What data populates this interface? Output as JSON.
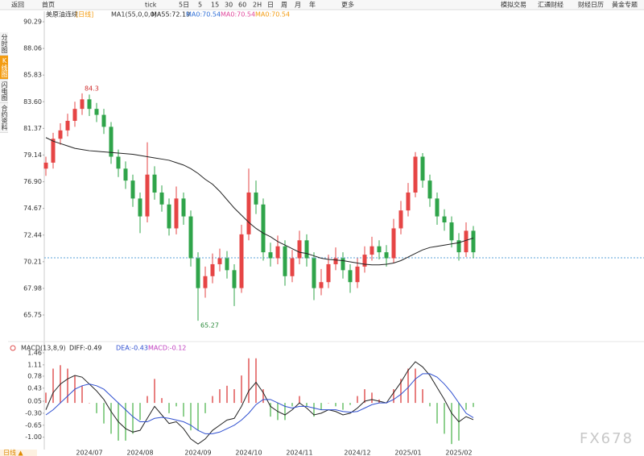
{
  "toolbar": [
    "返回",
    "首页",
    "tick",
    "5日",
    "5",
    "15",
    "30",
    "60",
    "2H",
    "日",
    "周",
    "月",
    "年",
    "更多",
    "模拟交易",
    "汇通财经",
    "财经日历",
    "黄金专题"
  ],
  "sidebar": [
    "分时图",
    "K线图",
    "闪电图",
    "合约资料"
  ],
  "footer_tab": "日线 ▲",
  "watermark": "FX678",
  "chart_data": [
    {
      "type": "candlestick",
      "title": "美原油连续",
      "subtitle": "[日线]",
      "indicator_label": "MA1(55,0,0,0)",
      "legend": [
        {
          "name": "MA55:72.19",
          "color": "#222222"
        },
        {
          "name": "MA0:70.54",
          "color": "#2f6fd6"
        },
        {
          "name": "MA0:70.54",
          "color": "#e0489c"
        },
        {
          "name": "MA0:70.54",
          "color": "#f39c12"
        }
      ],
      "up_color": "#e64545",
      "down_color": "#2fa44a",
      "price_line": 70.54,
      "categories": [
        null,
        null,
        null,
        null,
        null,
        null,
        "2024/07",
        null,
        null,
        null,
        null,
        null,
        null,
        "2024/08",
        null,
        null,
        null,
        null,
        null,
        null,
        null,
        "2024/09",
        null,
        null,
        null,
        null,
        null,
        null,
        "2024/10",
        null,
        null,
        null,
        null,
        null,
        null,
        "2024/11",
        null,
        null,
        null,
        null,
        null,
        null,
        null,
        "2024/12",
        null,
        null,
        null,
        null,
        null,
        null,
        "2025/01",
        null,
        null,
        null,
        null,
        null,
        null,
        "2025/02",
        null,
        null
      ],
      "open": [
        78.0,
        78.5,
        80.5,
        81.2,
        82.0,
        83.0,
        83.8,
        83.0,
        82.5,
        81.5,
        79.0,
        78.0,
        77.0,
        75.5,
        74.0,
        77.5,
        76.0,
        75.0,
        73.0,
        75.5,
        74.0,
        70.5,
        68.0,
        69.0,
        70.0,
        70.5,
        69.5,
        68.0,
        72.5,
        76.0,
        75.0,
        71.0,
        70.5,
        71.5,
        69.0,
        70.5,
        72.0,
        70.5,
        68.0,
        68.5,
        70.0,
        70.5,
        69.5,
        68.5,
        69.8,
        70.8,
        71.5,
        71.0,
        70.5,
        73.0,
        74.5,
        76.0,
        79.0,
        77.0,
        75.5,
        74.0,
        73.5,
        72.0,
        71.0,
        72.8
      ],
      "high": [
        79.0,
        81.0,
        81.8,
        82.6,
        83.6,
        84.3,
        84.2,
        83.5,
        83.0,
        81.9,
        79.6,
        78.6,
        77.5,
        76.0,
        80.2,
        78.2,
        76.6,
        75.5,
        76.5,
        76.0,
        74.5,
        71.0,
        69.8,
        70.9,
        71.3,
        71.1,
        70.0,
        73.3,
        78.0,
        77.0,
        75.5,
        71.8,
        72.4,
        72.0,
        71.2,
        72.8,
        72.5,
        71.0,
        69.6,
        70.8,
        71.4,
        71.0,
        70.0,
        70.5,
        71.5,
        72.3,
        72.0,
        71.6,
        73.8,
        75.3,
        76.8,
        79.39,
        79.3,
        77.5,
        76.0,
        74.6,
        74.0,
        72.6,
        73.5,
        73.2
      ],
      "low": [
        77.4,
        78.0,
        80.0,
        80.7,
        81.5,
        82.5,
        82.4,
        81.9,
        80.9,
        78.4,
        77.3,
        76.3,
        74.8,
        72.6,
        73.5,
        75.4,
        74.4,
        72.4,
        72.5,
        73.3,
        69.8,
        65.27,
        67.2,
        68.4,
        69.4,
        68.8,
        66.5,
        67.6,
        72.0,
        74.2,
        70.3,
        69.8,
        70.0,
        68.2,
        68.5,
        70.0,
        69.8,
        67.0,
        67.4,
        68.0,
        69.5,
        68.8,
        67.6,
        68.0,
        69.3,
        70.3,
        70.4,
        69.8,
        70.1,
        72.5,
        74.0,
        75.6,
        76.4,
        74.8,
        73.3,
        72.8,
        71.4,
        70.3,
        70.6,
        70.5
      ],
      "close": [
        78.5,
        80.5,
        81.2,
        82.0,
        83.0,
        83.8,
        83.0,
        82.5,
        81.5,
        79.0,
        78.0,
        77.0,
        75.5,
        74.0,
        77.5,
        76.0,
        75.0,
        73.0,
        75.5,
        74.0,
        70.5,
        68.0,
        69.0,
        70.0,
        70.5,
        69.5,
        68.0,
        72.5,
        76.0,
        75.0,
        71.0,
        70.5,
        71.5,
        69.0,
        70.5,
        72.0,
        70.5,
        68.0,
        68.5,
        70.0,
        70.5,
        69.5,
        68.5,
        69.8,
        70.8,
        71.5,
        71.0,
        70.5,
        73.0,
        74.5,
        76.0,
        79.0,
        77.0,
        75.5,
        74.0,
        73.5,
        72.0,
        71.0,
        72.8,
        71.0
      ],
      "series": [
        {
          "name": "MA55:72.19",
          "color": "#222222",
          "values": [
            80.6,
            80.3,
            80.1,
            79.9,
            79.7,
            79.6,
            79.5,
            79.45,
            79.4,
            79.35,
            79.3,
            79.25,
            79.2,
            79.1,
            79.0,
            78.9,
            78.8,
            78.7,
            78.5,
            78.3,
            78.0,
            77.6,
            77.1,
            76.7,
            76.1,
            75.4,
            74.7,
            74.1,
            73.5,
            73.0,
            72.6,
            72.3,
            71.9,
            71.6,
            71.3,
            71.0,
            70.9,
            70.7,
            70.5,
            70.4,
            70.35,
            70.3,
            70.2,
            70.1,
            70.0,
            69.95,
            69.95,
            70.0,
            70.1,
            70.3,
            70.6,
            70.9,
            71.2,
            71.4,
            71.5,
            71.6,
            71.7,
            71.8,
            72.0,
            72.19
          ]
        }
      ],
      "ylim": [
        64.13,
        90.9
      ],
      "yticks": [
        90.29,
        88.06,
        85.83,
        {
          "value": 83.6,
          "label": "83.60"
        },
        81.37,
        79.14,
        {
          "value": 76.9,
          "label": "76.90"
        },
        74.67,
        72.44,
        70.21,
        67.98,
        65.75
      ]
    },
    {
      "type": "macd",
      "title": "MACD(13,8,9)",
      "legend": [
        {
          "name": "DIFF:-0.49",
          "color": "#222222"
        },
        {
          "name": "DEA:-0.43",
          "color": "#2f4fd0"
        },
        {
          "name": "MACD:-0.12",
          "color": "#c040c0"
        }
      ],
      "up_color": "#e88080",
      "down_color": "#8fd08f",
      "histogram": [
        0.3,
        1.0,
        1.1,
        1.0,
        0.8,
        0.5,
        0,
        -0.3,
        -0.6,
        -0.9,
        -1.1,
        -1.1,
        -0.9,
        -0.5,
        0.2,
        0.7,
        0.14,
        -0.3,
        -0.1,
        -0.4,
        -0.8,
        -0.8,
        -0.3,
        0.2,
        0.4,
        0.5,
        0.4,
        0.8,
        1.3,
        1.3,
        0.4,
        -0.4,
        -0.5,
        -0.5,
        -0.1,
        0.2,
        -0.1,
        -0.4,
        -0.2,
        0,
        -0.1,
        -0.2,
        -0.06,
        0.2,
        0.4,
        0.3,
        0.1,
        0,
        0.4,
        0.7,
        1.0,
        1.0,
        0.4,
        -0.1,
        -0.6,
        -0.9,
        -1.2,
        -1.1,
        -0.2,
        -0.12
      ],
      "series": [
        {
          "name": "DIFF:-0.49",
          "color": "#222222",
          "values": [
            -0.2,
            0.3,
            0.55,
            0.7,
            0.8,
            0.75,
            0.55,
            0.35,
            0.1,
            -0.25,
            -0.55,
            -0.75,
            -0.85,
            -0.8,
            -0.45,
            -0.1,
            -0.35,
            -0.6,
            -0.55,
            -0.75,
            -1.05,
            -1.2,
            -1.05,
            -0.8,
            -0.65,
            -0.5,
            -0.45,
            -0.1,
            0.35,
            0.6,
            0.3,
            -0.1,
            -0.25,
            -0.35,
            -0.2,
            0.0,
            -0.15,
            -0.35,
            -0.3,
            -0.2,
            -0.25,
            -0.35,
            -0.3,
            -0.15,
            0.05,
            0.1,
            0.05,
            0.0,
            0.3,
            0.6,
            0.95,
            1.2,
            1.05,
            0.8,
            0.45,
            0.1,
            -0.3,
            -0.55,
            -0.4,
            -0.49
          ]
        },
        {
          "name": "DEA:-0.43",
          "color": "#2f4fd0",
          "values": [
            -0.35,
            -0.2,
            0.0,
            0.2,
            0.4,
            0.5,
            0.55,
            0.5,
            0.4,
            0.2,
            0.0,
            -0.2,
            -0.4,
            -0.55,
            -0.55,
            -0.45,
            -0.42,
            -0.45,
            -0.5,
            -0.55,
            -0.65,
            -0.8,
            -0.9,
            -0.9,
            -0.85,
            -0.75,
            -0.65,
            -0.5,
            -0.3,
            -0.05,
            0.1,
            0.1,
            0.0,
            -0.1,
            -0.15,
            -0.1,
            -0.1,
            -0.15,
            -0.2,
            -0.2,
            -0.2,
            -0.25,
            -0.27,
            -0.25,
            -0.15,
            -0.05,
            0.0,
            0.0,
            0.1,
            0.25,
            0.45,
            0.7,
            0.85,
            0.85,
            0.75,
            0.55,
            0.3,
            0.0,
            -0.3,
            -0.43
          ]
        }
      ],
      "ylim": [
        -1.36,
        1.6
      ],
      "yticks": [
        1.46,
        1.11,
        0.78,
        0.43,
        0.05,
        {
          "value": -0.3,
          "label": "-0.30"
        },
        -0.65,
        {
          "value": -1,
          "label": "-1.00"
        }
      ]
    }
  ]
}
